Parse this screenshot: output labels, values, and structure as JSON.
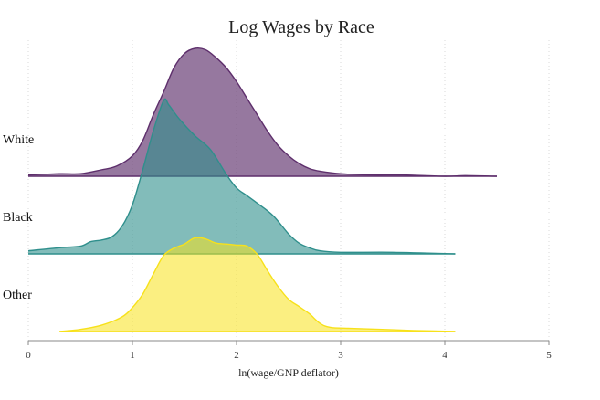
{
  "chart_data": {
    "type": "area",
    "title": "Log Wages by Race",
    "xlabel": "ln(wage/GNP deflator)",
    "ylabel": "",
    "xlim": [
      0,
      5
    ],
    "xticks": [
      0,
      1,
      2,
      3,
      4,
      5
    ],
    "grid": true,
    "legend": "none",
    "series": [
      {
        "name": "White",
        "color": "#5e2f6c",
        "fill_opacity": 0.65,
        "points": [
          [
            0.0,
            0.01
          ],
          [
            0.3,
            0.02
          ],
          [
            0.5,
            0.02
          ],
          [
            0.7,
            0.05
          ],
          [
            0.85,
            0.08
          ],
          [
            1.0,
            0.16
          ],
          [
            1.1,
            0.28
          ],
          [
            1.2,
            0.48
          ],
          [
            1.3,
            0.66
          ],
          [
            1.4,
            0.85
          ],
          [
            1.5,
            0.96
          ],
          [
            1.6,
            1.0
          ],
          [
            1.7,
            0.99
          ],
          [
            1.8,
            0.93
          ],
          [
            1.9,
            0.85
          ],
          [
            2.0,
            0.74
          ],
          [
            2.1,
            0.61
          ],
          [
            2.2,
            0.48
          ],
          [
            2.3,
            0.35
          ],
          [
            2.4,
            0.24
          ],
          [
            2.5,
            0.16
          ],
          [
            2.6,
            0.1
          ],
          [
            2.7,
            0.06
          ],
          [
            2.8,
            0.04
          ],
          [
            3.0,
            0.02
          ],
          [
            3.3,
            0.01
          ],
          [
            3.6,
            0.01
          ],
          [
            4.0,
            0.0
          ],
          [
            4.2,
            0.005
          ],
          [
            4.5,
            0.0
          ]
        ]
      },
      {
        "name": "Black",
        "color": "#2f8f8c",
        "fill_opacity": 0.6,
        "points": [
          [
            0.0,
            0.02
          ],
          [
            0.3,
            0.04
          ],
          [
            0.5,
            0.05
          ],
          [
            0.6,
            0.08
          ],
          [
            0.7,
            0.09
          ],
          [
            0.8,
            0.11
          ],
          [
            0.9,
            0.18
          ],
          [
            1.0,
            0.32
          ],
          [
            1.1,
            0.55
          ],
          [
            1.2,
            0.8
          ],
          [
            1.3,
            1.0
          ],
          [
            1.35,
            0.97
          ],
          [
            1.45,
            0.88
          ],
          [
            1.6,
            0.77
          ],
          [
            1.75,
            0.68
          ],
          [
            1.9,
            0.52
          ],
          [
            2.0,
            0.43
          ],
          [
            2.1,
            0.38
          ],
          [
            2.2,
            0.33
          ],
          [
            2.35,
            0.25
          ],
          [
            2.5,
            0.13
          ],
          [
            2.6,
            0.07
          ],
          [
            2.7,
            0.04
          ],
          [
            2.8,
            0.02
          ],
          [
            3.0,
            0.01
          ],
          [
            3.5,
            0.01
          ],
          [
            4.1,
            0.0
          ]
        ]
      },
      {
        "name": "Other",
        "color": "#f7e11a",
        "fill_opacity": 0.55,
        "points": [
          [
            0.3,
            0.0
          ],
          [
            0.5,
            0.02
          ],
          [
            0.7,
            0.06
          ],
          [
            0.9,
            0.14
          ],
          [
            1.0,
            0.23
          ],
          [
            1.1,
            0.36
          ],
          [
            1.2,
            0.55
          ],
          [
            1.3,
            0.73
          ],
          [
            1.4,
            0.8
          ],
          [
            1.5,
            0.84
          ],
          [
            1.6,
            0.9
          ],
          [
            1.7,
            0.89
          ],
          [
            1.8,
            0.85
          ],
          [
            1.9,
            0.84
          ],
          [
            2.0,
            0.83
          ],
          [
            2.1,
            0.82
          ],
          [
            2.2,
            0.74
          ],
          [
            2.3,
            0.58
          ],
          [
            2.4,
            0.43
          ],
          [
            2.5,
            0.31
          ],
          [
            2.6,
            0.24
          ],
          [
            2.7,
            0.17
          ],
          [
            2.8,
            0.08
          ],
          [
            2.9,
            0.04
          ],
          [
            3.1,
            0.03
          ],
          [
            3.4,
            0.02
          ],
          [
            3.7,
            0.01
          ],
          [
            4.1,
            0.0
          ]
        ]
      }
    ]
  }
}
